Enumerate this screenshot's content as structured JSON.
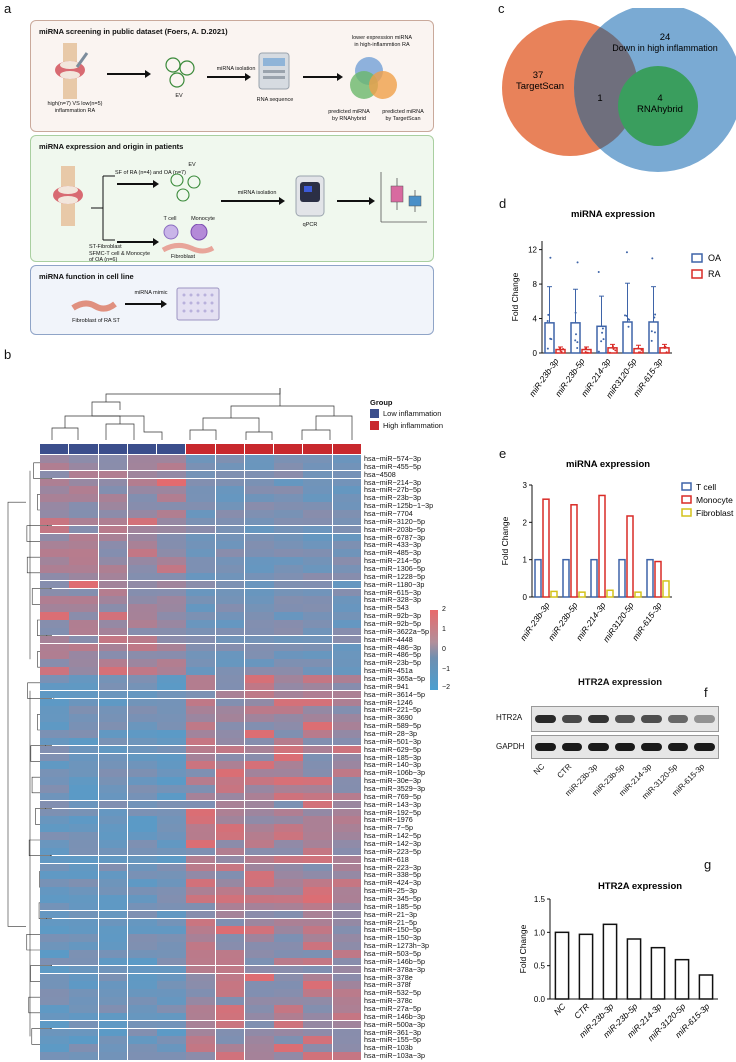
{
  "panels": {
    "a": "a",
    "b": "b",
    "c": "c",
    "d": "d",
    "e": "e",
    "f": "f",
    "g": "g"
  },
  "panel_a": {
    "box1": {
      "title": "miRNA screening in public dataset (Foers, A. D.2021)",
      "group_label": "high(n=7) VS low(n=5)\ninflammation RA",
      "ev_label": "EV",
      "isolation_label": "miRNA isolation",
      "rnaseq_label": "RNA sequence",
      "lower_label": "lower expression miRNA\nin high-inflammtion RA",
      "pred_rnahybrid": "predicted miRNA\nby RNAhybrid",
      "pred_targetscan": "predicted miRNA\nby TargetScan"
    },
    "box2": {
      "title": "miRNA expression and origin in patients",
      "sf_label": "SF of RA (n=4) and OA (n=7)",
      "ev_label": "EV",
      "isolation_label": "miRNA isolation",
      "tcell_label": "T cell",
      "monocyte_label": "Monocyte",
      "fibroblast_label": "Fibroblast",
      "st_label": "ST-Fibroblast\nSFMC-T cell & Monocyte\nof OA (n=6)",
      "qpcr_label": "qPCR"
    },
    "box3": {
      "title": "miRNA function in cell line",
      "mimic_label": "miRNA mimic",
      "fibro_label": "Fibroblast of RA ST"
    }
  },
  "panel_b": {
    "legend_title": "Group",
    "legend_low": "Low inflammation",
    "legend_high": "High inflammation",
    "scale_ticks": [
      "2",
      "1",
      "0",
      "−1",
      "−2"
    ],
    "colors": {
      "low": "#3b4e8c",
      "high": "#c8282d",
      "hot": "#e8696b",
      "mid": "#6f8fb0",
      "cold": "#4a9fd0"
    },
    "rows": [
      "hsa−miR−574−3p",
      "hsa−miR−455−5p",
      "hsa−4508",
      "hsa−miR−214−3p",
      "hsa−miR−27b−5p",
      "hsa−miR−23b−3p",
      "hsa−miR−125b−1−3p",
      "hsa−miR−7704",
      "hsa−miR−3120−5p",
      "hsa−miR−203b−5p",
      "hsa−miR−6787−3p",
      "hsa−miR−433−3p",
      "hsa−miR−485−3p",
      "hsa−miR−214−5p",
      "hsa−miR−1306−5p",
      "hsa−miR−1228−5p",
      "hsa−miR−1180−3p",
      "hsa−miR−615−3p",
      "hsa−miR−328−3p",
      "hsa−miR−543",
      "hsa−miR−92b−3p",
      "hsa−miR−92b−5p",
      "hsa−miR−3622a−5p",
      "hsa−miR−4448",
      "hsa−miR−486−3p",
      "hsa−miR−486−5p",
      "hsa−miR−23b−5p",
      "hsa−miR−451a",
      "hsa−miR−365a−5p",
      "hsa−miR−941",
      "hsa−miR−3614−5p",
      "hsa−miR−1246",
      "hsa−miR−221−5p",
      "hsa−miR−3690",
      "hsa−miR−589−5p",
      "hsa−miR−28−3p",
      "hsa−miR−501−3p",
      "hsa−miR−629−5p",
      "hsa−miR−185−3p",
      "hsa−miR−140−3p",
      "hsa−miR−106b−3p",
      "hsa−miR−30e−3p",
      "hsa−miR−3529−3p",
      "hsa−miR−769−5p",
      "hsa−miR−143−3p",
      "hsa−miR−192−5p",
      "hsa−miR−1976",
      "hsa−miR−7−5p",
      "hsa−miR−142−5p",
      "hsa−miR−142−3p",
      "hsa−miR−223−5p",
      "hsa−miR−618",
      "hsa−miR−223−3p",
      "hsa−miR−338−5p",
      "hsa−miR−424−3p",
      "hsa−miR−25−3p",
      "hsa−miR−345−5p",
      "hsa−miR−185−5p",
      "hsa−miR−21−3p",
      "hsa−miR−21−5p",
      "hsa−miR−150−5p",
      "hsa−miR−150−3p",
      "hsa−miR−1273h−3p",
      "hsa−miR−503−5p",
      "hsa−miR−146b−5p",
      "hsa−miR−378a−3p",
      "hsa−miR−378e",
      "hsa−miR−378f",
      "hsa−miR−532−5p",
      "hsa−miR−378c",
      "hsa−miR−27a−5p",
      "hsa−miR−146b−3p",
      "hsa−miR−500a−3p",
      "hsa−miR−361−3p",
      "hsa−miR−155−5p",
      "hsa−miR−103b",
      "hsa−miR−103a−3p"
    ]
  },
  "panel_c": {
    "left_count": "37",
    "left_name": "TargetScan",
    "right_count": "24",
    "right_name": "Down in high inflammation",
    "inner_count": "4",
    "inner_name": "RNAhybrid",
    "overlap_count": "1",
    "colors": {
      "left": "#e8825a",
      "right": "#7aaad3",
      "inner": "#3a9e5e",
      "overlap": "#6f6f7d"
    }
  },
  "chart_data": [
    {
      "panel": "d",
      "type": "bar",
      "title": "miRNA expression",
      "ylabel": "Fold Change",
      "categories": [
        "miR-23b-3p",
        "miR-23b-5p",
        "miR-214-3p",
        "miR3120-5p",
        "miR-615-3p"
      ],
      "series": [
        {
          "name": "OA",
          "values": [
            3.5,
            3.5,
            3.1,
            3.6,
            3.6
          ],
          "err": [
            4.2,
            3.9,
            3.5,
            4.5,
            4.1
          ]
        },
        {
          "name": "RA",
          "values": [
            0.4,
            0.4,
            0.6,
            0.5,
            0.6
          ],
          "err": [
            0.3,
            0.3,
            0.4,
            0.4,
            0.4
          ]
        }
      ],
      "yticks": [
        0,
        4,
        8,
        12
      ],
      "ylim": [
        0,
        13
      ],
      "colors": {
        "OA": "#3e64a8",
        "RA": "#d92b27"
      }
    },
    {
      "panel": "e",
      "type": "bar",
      "title": "miRNA expression",
      "ylabel": "Fold  Change",
      "categories": [
        "miR-23b-3p",
        "miR-23b-5p",
        "miR-214-3p",
        "miR3120-5p",
        "miR-615-3p"
      ],
      "series": [
        {
          "name": "T cell",
          "values": [
            1.0,
            1.0,
            1.0,
            1.0,
            1.0
          ]
        },
        {
          "name": "Monocyte",
          "values": [
            2.62,
            2.47,
            2.72,
            2.17,
            0.95
          ]
        },
        {
          "name": "Fibroblast",
          "values": [
            0.15,
            0.13,
            0.18,
            0.13,
            0.43
          ]
        }
      ],
      "yticks": [
        0,
        1,
        2,
        3
      ],
      "ylim": [
        0,
        3
      ],
      "colors": {
        "T cell": "#3e64a8",
        "Monocyte": "#d92b27",
        "Fibroblast": "#d4c21a"
      }
    },
    {
      "panel": "g",
      "type": "bar",
      "title": "HTR2A expression",
      "ylabel": "Fold  Change",
      "categories": [
        "NC",
        "CTR",
        "miR-23b-3p",
        "miR-23b-5p",
        "miR-214-3p",
        "miR-3120-5p",
        "miR-615-3p"
      ],
      "values": [
        1.0,
        0.97,
        1.12,
        0.9,
        0.77,
        0.59,
        0.36
      ],
      "yticks": [
        "0.0",
        "0.5",
        "1.0",
        "1.5"
      ],
      "ylim": [
        0,
        1.5
      ]
    }
  ],
  "panel_f": {
    "title": "HTR2A expression",
    "band1": "HTR2A",
    "band2": "GAPDH",
    "lanes": [
      "NC",
      "CTR",
      "miR-23b-3p",
      "miR-23b-5p",
      "miR-214-3p",
      "miR-3120-5p",
      "miR-615-3p"
    ],
    "htr2a_intensity": [
      0.9,
      0.75,
      0.85,
      0.7,
      0.72,
      0.6,
      0.4
    ]
  }
}
